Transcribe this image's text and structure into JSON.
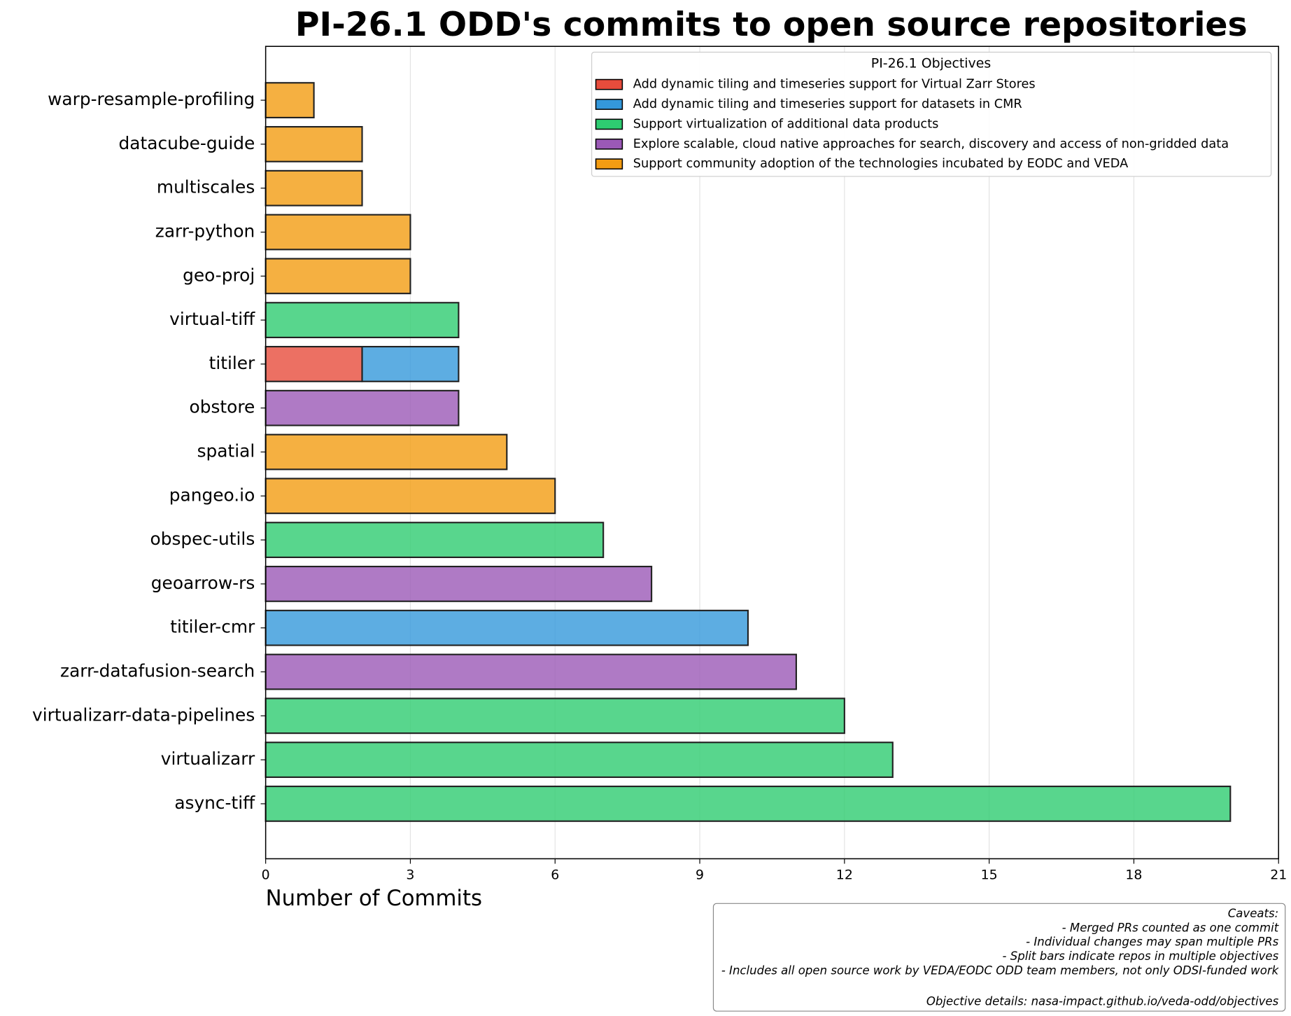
{
  "chart_data": {
    "type": "barh",
    "stacked": true,
    "title": "PI-26.1 ODD's commits to open source repositories",
    "x_label": "Number of Commits",
    "categories": [
      "warp-resample-profiling",
      "datacube-guide",
      "multiscales",
      "zarr-python",
      "geo-proj",
      "virtual-tiff",
      "titiler",
      "obstore",
      "spatial",
      "pangeo.io",
      "obspec-utils",
      "geoarrow-rs",
      "titiler-cmr",
      "zarr-datafusion-search",
      "virtualizarr-data-pipelines",
      "virtualizarr",
      "async-tiff"
    ],
    "legend_title": "PI-26.1 Objectives",
    "legend_position": "upper right",
    "series": [
      {
        "name": " Add dynamic tiling and timeseries support for Virtual Zarr Stores",
        "color": "#e74c3c",
        "values": [
          null,
          null,
          null,
          null,
          null,
          null,
          2,
          null,
          null,
          null,
          null,
          null,
          null,
          null,
          null,
          null,
          null
        ]
      },
      {
        "name": "Add dynamic tiling and timeseries support for datasets in CMR",
        "color": "#3498db",
        "values": [
          null,
          null,
          null,
          null,
          null,
          null,
          2,
          null,
          null,
          null,
          null,
          null,
          10,
          null,
          null,
          null,
          null
        ]
      },
      {
        "name": "Support virtualization of additional data products",
        "color": "#2ecc71",
        "values": [
          null,
          null,
          null,
          null,
          null,
          4,
          null,
          null,
          null,
          null,
          7,
          null,
          null,
          null,
          12,
          13,
          20
        ]
      },
      {
        "name": "Explore scalable, cloud native approaches for search, discovery and access of non-gridded data",
        "color": "#9b59b6",
        "values": [
          null,
          null,
          null,
          null,
          null,
          null,
          null,
          4,
          null,
          null,
          null,
          8,
          null,
          11,
          null,
          null,
          null
        ]
      },
      {
        "name": "Support community adoption of the technologies incubated by EODC and VEDA",
        "color": "#f39c12",
        "values": [
          1,
          2,
          2,
          3,
          3,
          null,
          null,
          null,
          5,
          6,
          null,
          null,
          null,
          null,
          null,
          null,
          null
        ]
      }
    ],
    "xlim": [
      0,
      21
    ],
    "xticks": [
      0,
      3,
      6,
      9,
      12,
      15,
      18,
      21
    ],
    "grid": true,
    "caveats_title": "Caveats:",
    "caveats": [
      "- Merged PRs counted as one commit",
      "- Individual changes may span multiple PRs",
      "- Split bars indicate repos in multiple objectives",
      "- Includes all open source work by VEDA/EODC ODD team members, not only ODSI-funded work"
    ],
    "objective_details": "Objective details: nasa-impact.github.io/veda-odd/objectives"
  }
}
